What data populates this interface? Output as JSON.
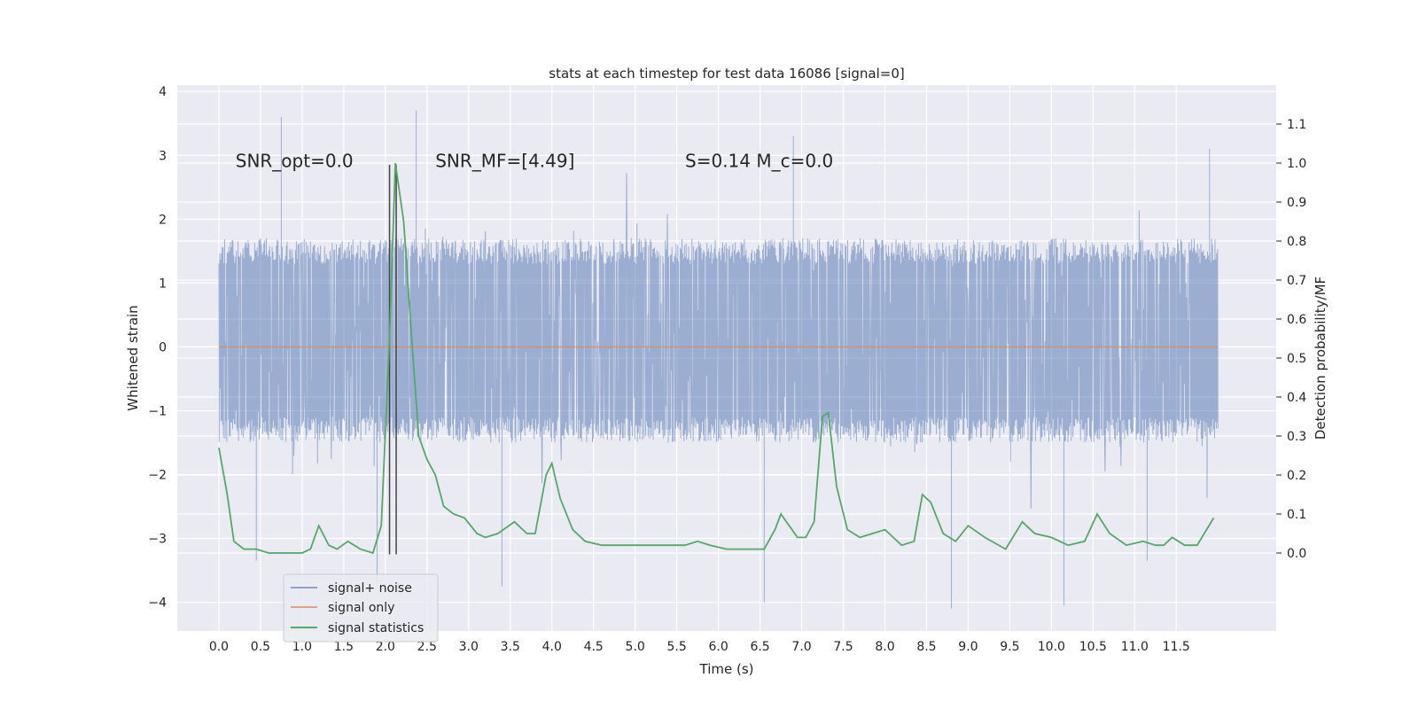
{
  "chart_data": {
    "type": "line",
    "title": "stats at each timestep for test data 16086 [signal=0]",
    "xlabel": "Time (s)",
    "ylabel": "Whitened strain",
    "y2label": "Detection probability/MF",
    "xlim": [
      -0.5,
      12.7
    ],
    "ylim": [
      -4.45,
      4.1
    ],
    "y2lim": [
      -0.2,
      1.2
    ],
    "xticks": [
      0.0,
      0.5,
      1.0,
      1.5,
      2.0,
      2.5,
      3.0,
      3.5,
      4.0,
      4.5,
      5.0,
      5.5,
      6.0,
      6.5,
      7.0,
      7.5,
      8.0,
      8.5,
      9.0,
      9.5,
      10.0,
      10.5,
      11.0,
      11.5
    ],
    "xtick_labels": [
      "0.0",
      "0.5",
      "1.0",
      "1.5",
      "2.0",
      "2.5",
      "3.0",
      "3.5",
      "4.0",
      "4.5",
      "5.0",
      "5.5",
      "6.0",
      "6.5",
      "7.0",
      "7.5",
      "8.0",
      "8.5",
      "9.0",
      "9.5",
      "10.0",
      "10.5",
      "11.0",
      "11.5"
    ],
    "yticks": [
      -4,
      -3,
      -2,
      -1,
      0,
      1,
      2,
      3,
      4
    ],
    "ytick_labels": [
      "−4",
      "−3",
      "−2",
      "−1",
      "0",
      "1",
      "2",
      "3",
      "4"
    ],
    "y2ticks": [
      0.0,
      0.1,
      0.2,
      0.3,
      0.4,
      0.5,
      0.6,
      0.7,
      0.8,
      0.9,
      1.0,
      1.1
    ],
    "y2tick_labels": [
      "0.0",
      "0.1",
      "0.2",
      "0.3",
      "0.4",
      "0.5",
      "0.6",
      "0.7",
      "0.8",
      "0.9",
      "1.0",
      "1.1"
    ],
    "grid": true,
    "legend_position": "lower-left",
    "annotations": [
      {
        "text": "SNR_opt=0.0",
        "x": 0.2,
        "y": 2.9
      },
      {
        "text": "SNR_MF=[4.49]",
        "x": 2.6,
        "y": 2.9
      },
      {
        "text": "S=0.14   M_c=0.0",
        "x": 5.6,
        "y": 2.9
      }
    ],
    "vlines": [
      {
        "x": 2.05,
        "ymin": -3.25,
        "ymax": 2.85
      },
      {
        "x": 2.13,
        "ymin": -3.25,
        "ymax": 2.85
      }
    ],
    "series": [
      {
        "name": "signal+ noise",
        "axis": "left",
        "color": "#4c72b0",
        "x_range": [
          0.0,
          12.0
        ],
        "typical_range": [
          -1.5,
          1.7
        ],
        "outliers": [
          {
            "x": 0.75,
            "y": 3.6
          },
          {
            "x": 2.37,
            "y": 3.7
          },
          {
            "x": 3.4,
            "y": -3.75
          },
          {
            "x": 6.55,
            "y": -4.0
          },
          {
            "x": 8.8,
            "y": -4.1
          },
          {
            "x": 10.15,
            "y": -4.05
          },
          {
            "x": 1.9,
            "y": -3.7
          },
          {
            "x": 0.45,
            "y": -3.35
          },
          {
            "x": 11.15,
            "y": -3.35
          },
          {
            "x": 11.9,
            "y": 3.1
          },
          {
            "x": 6.9,
            "y": 3.3
          }
        ]
      },
      {
        "name": "signal only",
        "axis": "left",
        "color": "#dd8452",
        "x": [
          0.0,
          12.0
        ],
        "values": [
          0.0,
          0.0
        ]
      },
      {
        "name": "signal statistics",
        "axis": "right",
        "color": "#55a868",
        "x": [
          0.0,
          0.1,
          0.18,
          0.3,
          0.45,
          0.6,
          0.8,
          1.0,
          1.1,
          1.2,
          1.32,
          1.42,
          1.55,
          1.7,
          1.85,
          1.95,
          2.05,
          2.12,
          2.22,
          2.3,
          2.4,
          2.5,
          2.6,
          2.7,
          2.82,
          2.95,
          3.1,
          3.2,
          3.35,
          3.55,
          3.7,
          3.8,
          3.93,
          4.0,
          4.1,
          4.25,
          4.4,
          4.6,
          4.8,
          5.0,
          5.2,
          5.4,
          5.6,
          5.75,
          5.9,
          6.1,
          6.3,
          6.55,
          6.68,
          6.75,
          6.85,
          6.95,
          7.05,
          7.15,
          7.25,
          7.32,
          7.42,
          7.55,
          7.7,
          7.85,
          8.0,
          8.1,
          8.2,
          8.35,
          8.45,
          8.55,
          8.7,
          8.85,
          9.0,
          9.2,
          9.45,
          9.65,
          9.8,
          10.0,
          10.2,
          10.4,
          10.55,
          10.7,
          10.9,
          11.1,
          11.25,
          11.35,
          11.45,
          11.6,
          11.75,
          11.95
        ],
        "values": [
          0.27,
          0.15,
          0.03,
          0.01,
          0.01,
          0.0,
          0.0,
          0.0,
          0.01,
          0.07,
          0.02,
          0.01,
          0.03,
          0.01,
          0.0,
          0.07,
          0.55,
          1.0,
          0.85,
          0.6,
          0.3,
          0.24,
          0.2,
          0.12,
          0.1,
          0.09,
          0.05,
          0.04,
          0.05,
          0.08,
          0.05,
          0.05,
          0.2,
          0.23,
          0.14,
          0.06,
          0.03,
          0.02,
          0.02,
          0.02,
          0.02,
          0.02,
          0.02,
          0.03,
          0.02,
          0.01,
          0.01,
          0.01,
          0.06,
          0.1,
          0.07,
          0.04,
          0.04,
          0.08,
          0.35,
          0.36,
          0.17,
          0.06,
          0.04,
          0.05,
          0.06,
          0.04,
          0.02,
          0.03,
          0.15,
          0.13,
          0.05,
          0.03,
          0.07,
          0.04,
          0.01,
          0.08,
          0.05,
          0.04,
          0.02,
          0.03,
          0.1,
          0.05,
          0.02,
          0.03,
          0.02,
          0.02,
          0.04,
          0.02,
          0.02,
          0.09
        ]
      }
    ]
  }
}
